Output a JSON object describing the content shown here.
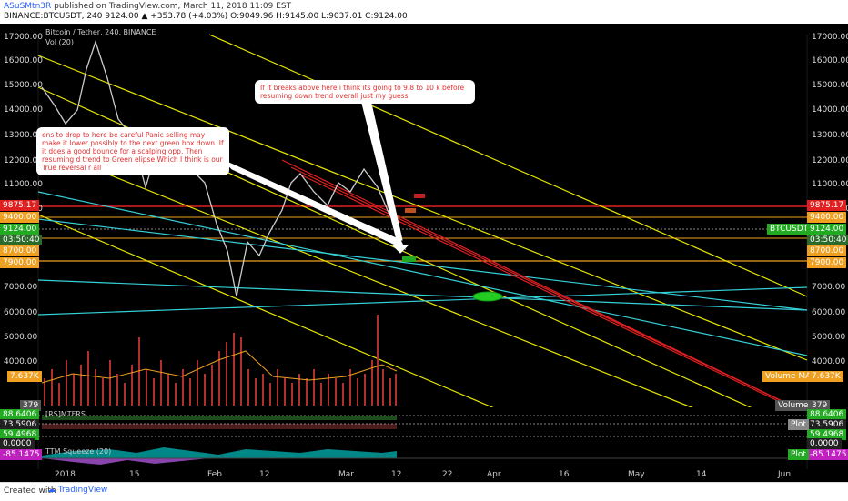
{
  "header": {
    "username": "ASuSMtn3R",
    "published": "published on TradingView.com, March 11, 2018 11:09 EST",
    "symbol_line": "BINANCE:BTCUSDT, 240  9124.00 ▲ +353.78 (+4.03%)  O:9049.96  H:9145.00  L:9037.01  C:9124.00"
  },
  "chart": {
    "title": "Bitcoin / Tether, 240, BINANCE",
    "vol_label": "Vol (20)",
    "left_axis": [
      "17000.00",
      "16000.00",
      "15000.00",
      "14000.00",
      "13000.00",
      "12000.00",
      "11000.00",
      "10000.00",
      "7000.00",
      "6000.00",
      "5000.00",
      "4000.00"
    ],
    "right_axis": [
      "17000.00",
      "16000.00",
      "15000.00",
      "14000.00",
      "13000.00",
      "12000.00",
      "11000.00",
      "10000.00",
      "7000.00",
      "6000.00",
      "5000.00",
      "4000.00"
    ],
    "price_tags": {
      "red": "9875.17",
      "orange1": "9400.00",
      "current": "9124.00",
      "timer": "03:50:40",
      "orange2": "8700.00",
      "orange3": "7900.00",
      "symbol": "BTCUSDT"
    },
    "volume_tag": "7.637K",
    "volume_ma_label": "Volume MA",
    "volume_label": "Volume",
    "vol_379": "379",
    "x_axis": [
      "2018",
      "15",
      "Feb",
      "12",
      "Mar",
      "12",
      "22",
      "Apr",
      "16",
      "May",
      "14",
      "Jun"
    ]
  },
  "annotations": {
    "top": "If it breaks above here i think its going to 9.8 to 10 k before resuming down trend overall just my guess",
    "left": "ens to drop to here be careful Panic selling may make it lower possibly to the next green box down. If it does a good bounce for a scalping opp. Then resuming d trend to Green elipse Which I think is our True reversal r all"
  },
  "rsi": {
    "label": "[RS]MTFRS",
    "values": [
      "88.6406",
      "73.5906",
      "59.4968"
    ],
    "plot": "Plot"
  },
  "ttm": {
    "label": "TTM Squeeze (20)",
    "value": "0.0000",
    "neg": "-85.1475",
    "plot": "Plot"
  },
  "footer": {
    "created": "Created with",
    "brand": "TradingView"
  },
  "colors": {
    "yellow": "#e6e600",
    "cyan": "#35d0d8",
    "red": "#e02020",
    "orange": "#f0a020",
    "green": "#22aa22"
  }
}
